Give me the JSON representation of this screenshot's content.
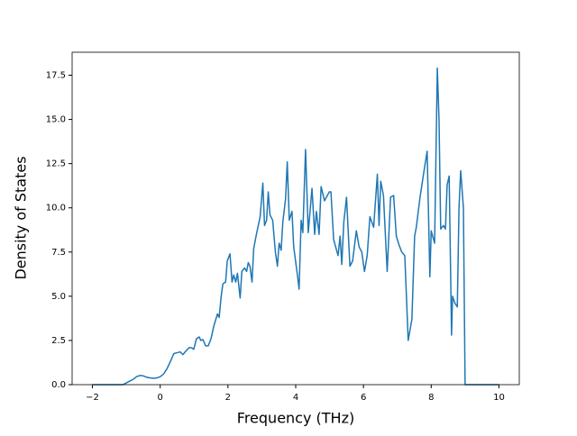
{
  "chart_data": {
    "type": "line",
    "xlabel": "Frequency (THz)",
    "ylabel": "Density of States",
    "x": [
      -2,
      -1.5,
      -1.1,
      -1.0,
      -0.9,
      -0.8,
      -0.7,
      -0.6,
      -0.5,
      -0.4,
      -0.3,
      -0.2,
      -0.1,
      0,
      0.1,
      0.2,
      0.3,
      0.4,
      0.48,
      0.59,
      0.67,
      0.78,
      0.86,
      0.93,
      0.99,
      1.07,
      1.15,
      1.2,
      1.26,
      1.34,
      1.42,
      1.5,
      1.58,
      1.69,
      1.74,
      1.8,
      1.85,
      1.93,
      1.98,
      2.06,
      2.12,
      2.17,
      2.23,
      2.28,
      2.36,
      2.41,
      2.49,
      2.55,
      2.6,
      2.65,
      2.71,
      2.76,
      2.84,
      2.95,
      3.03,
      3.08,
      3.14,
      3.19,
      3.24,
      3.32,
      3.4,
      3.46,
      3.51,
      3.57,
      3.62,
      3.7,
      3.75,
      3.81,
      3.89,
      3.94,
      4.05,
      4.1,
      4.16,
      4.21,
      4.29,
      4.37,
      4.48,
      4.56,
      4.61,
      4.69,
      4.75,
      4.85,
      4.99,
      5.04,
      5.12,
      5.25,
      5.31,
      5.36,
      5.42,
      5.5,
      5.6,
      5.68,
      5.79,
      5.87,
      5.95,
      6.03,
      6.11,
      6.19,
      6.3,
      6.41,
      6.46,
      6.51,
      6.59,
      6.7,
      6.8,
      6.89,
      6.97,
      7.05,
      7.13,
      7.22,
      7.32,
      7.43,
      7.51,
      7.56,
      7.67,
      7.78,
      7.88,
      7.96,
      8.0,
      8.1,
      8.18,
      8.23,
      8.28,
      8.36,
      8.42,
      8.47,
      8.53,
      8.6,
      8.63,
      8.7,
      8.77,
      8.82,
      8.87,
      8.95,
      9.0,
      9.5,
      10
    ],
    "series": [
      {
        "color": "#1f77b4",
        "values": [
          0,
          0,
          0,
          0.1,
          0.2,
          0.3,
          0.45,
          0.52,
          0.5,
          0.42,
          0.38,
          0.36,
          0.38,
          0.45,
          0.6,
          0.9,
          1.3,
          1.75,
          1.8,
          1.85,
          1.7,
          1.95,
          2.1,
          2.08,
          2.0,
          2.6,
          2.7,
          2.5,
          2.55,
          2.2,
          2.2,
          2.6,
          3.3,
          4.0,
          3.8,
          5.0,
          5.7,
          5.8,
          7.0,
          7.4,
          5.8,
          6.2,
          5.8,
          6.3,
          4.9,
          6.4,
          6.6,
          6.4,
          6.9,
          6.7,
          5.8,
          7.7,
          8.5,
          9.5,
          11.4,
          9.0,
          9.3,
          10.9,
          9.6,
          9.3,
          7.5,
          6.7,
          8.0,
          7.6,
          9.2,
          10.5,
          12.6,
          9.3,
          9.8,
          7.8,
          6.2,
          5.4,
          9.3,
          8.6,
          13.3,
          8.6,
          11.1,
          8.5,
          9.8,
          8.5,
          11.2,
          10.4,
          10.9,
          10.9,
          8.2,
          7.3,
          8.4,
          6.8,
          9.2,
          10.6,
          6.7,
          7.0,
          8.7,
          7.8,
          7.5,
          6.4,
          7.3,
          9.5,
          8.9,
          11.9,
          9.0,
          11.5,
          10.7,
          6.4,
          10.6,
          10.7,
          8.4,
          7.9,
          7.5,
          7.3,
          2.5,
          3.7,
          8.4,
          8.9,
          10.6,
          12.0,
          13.2,
          6.1,
          8.7,
          8.0,
          17.9,
          15.0,
          8.8,
          9.0,
          8.8,
          11.3,
          11.8,
          2.8,
          5.0,
          4.6,
          4.4,
          10.0,
          12.1,
          10.0,
          0,
          0,
          0
        ]
      }
    ],
    "xlim": [
      -2.6,
      10.6
    ],
    "xticks": [
      {
        "value": -2,
        "label": "−2"
      },
      0,
      2,
      4,
      6,
      8,
      10
    ],
    "ylim": [
      0,
      18.8
    ],
    "yticks": [
      {
        "value": 0,
        "label": "0.0"
      },
      {
        "value": 2.5,
        "label": "2.5"
      },
      {
        "value": 5,
        "label": "5.0"
      },
      {
        "value": 7.5,
        "label": "7.5"
      },
      {
        "value": 10,
        "label": "10.0"
      },
      {
        "value": 12.5,
        "label": "12.5"
      },
      {
        "value": 15,
        "label": "15.0"
      },
      {
        "value": 17.5,
        "label": "17.5"
      }
    ]
  }
}
